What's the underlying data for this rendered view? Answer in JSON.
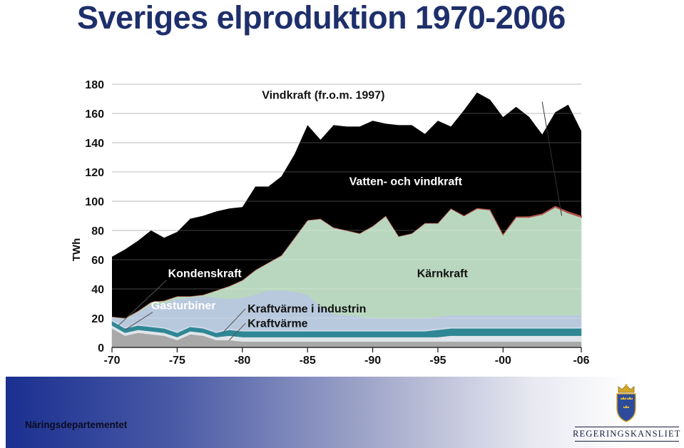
{
  "title": "Sveriges elproduktion 1970-2006",
  "footer": {
    "department": "Näringsdepartementet",
    "logo_text": "REGERINGSKANSLIET",
    "logo_icon": "crown-shield-three-crowns-icon"
  },
  "colors": {
    "title": "#1e2f6b",
    "vatten_och_vindkraft": "#5b7db0",
    "karnkraft": "#b9d7be",
    "vindkraft": "#b5524a",
    "kondenskraft": "#b8c8dd",
    "gasturbiner": "#ccd9e8",
    "kraftvarme_i_industrin": "#2f8794",
    "kraftvarme": "#dfe5ea",
    "other": "#a8a8a8"
  },
  "chart_data": {
    "type": "area",
    "stacked": true,
    "title": "",
    "xlabel": "",
    "ylabel": "TWh",
    "ylim": [
      0,
      180
    ],
    "xlim": [
      1970,
      2006
    ],
    "yticks": [
      "0",
      "20",
      "40",
      "60",
      "80",
      "100",
      "120",
      "140",
      "160",
      "180"
    ],
    "xticks": [
      {
        "x": 1970,
        "label": "-70"
      },
      {
        "x": 1975,
        "label": "-75"
      },
      {
        "x": 1980,
        "label": "-80"
      },
      {
        "x": 1985,
        "label": "-85"
      },
      {
        "x": 1990,
        "label": "-90"
      },
      {
        "x": 1995,
        "label": "-95"
      },
      {
        "x": 2000,
        "label": "-00"
      },
      {
        "x": 2006,
        "label": "-06"
      }
    ],
    "grid": true,
    "annotations": [
      {
        "text": "Vindkraft (fr.o.m. 1997)",
        "x": 1981.5,
        "y": 170,
        "target": [
          2004.5,
          90
        ]
      },
      {
        "text": "Vatten- och vindkraft",
        "x": 1988.2,
        "y": 111
      },
      {
        "text": "Kärnkraft",
        "x": 1993.4,
        "y": 48
      },
      {
        "text": "Kondenskraft",
        "x": 1974.3,
        "y": 48,
        "target": [
          1970.5,
          15
        ]
      },
      {
        "text": "Gasturbiner",
        "x": 1973.0,
        "y": 26,
        "target": [
          1971,
          12
        ]
      },
      {
        "text": "Kraftvärme i industrin",
        "x": 1980.4,
        "y": 24,
        "target": [
          1978.5,
          10
        ]
      },
      {
        "text": "Kraftvärme",
        "x": 1980.4,
        "y": 14,
        "target": [
          1979,
          5
        ]
      }
    ],
    "x": [
      1970,
      1971,
      1972,
      1973,
      1974,
      1975,
      1976,
      1977,
      1978,
      1979,
      1980,
      1981,
      1982,
      1983,
      1984,
      1985,
      1986,
      1987,
      1988,
      1989,
      1990,
      1991,
      1992,
      1993,
      1994,
      1995,
      1996,
      1997,
      1998,
      1999,
      2000,
      2001,
      2002,
      2003,
      2004,
      2005,
      2006
    ],
    "series": [
      {
        "key": "other",
        "values": [
          13,
          8,
          10,
          9,
          8,
          5,
          9,
          8,
          5,
          5,
          4,
          4,
          4,
          4,
          4,
          4,
          4,
          4,
          4,
          4,
          4,
          4,
          4,
          4,
          4,
          4,
          4,
          4,
          4,
          4,
          4,
          4,
          4,
          4,
          4,
          4,
          4
        ]
      },
      {
        "key": "kraftvarme",
        "values": [
          2,
          2,
          2,
          2,
          2,
          2,
          2,
          2,
          2,
          3,
          3,
          3,
          3,
          3,
          3,
          3,
          3,
          3,
          3,
          3,
          3,
          3,
          3,
          3,
          3,
          3,
          4,
          4,
          4,
          4,
          4,
          4,
          4,
          4,
          4,
          4,
          4
        ]
      },
      {
        "key": "kraftvarme_i_industrin",
        "values": [
          3,
          3,
          3,
          3,
          3,
          3,
          3,
          3,
          3,
          4,
          4,
          4,
          4,
          4,
          4,
          4,
          4,
          4,
          4,
          4,
          4,
          4,
          4,
          4,
          4,
          5,
          5,
          5,
          5,
          5,
          5,
          5,
          5,
          5,
          5,
          5,
          5
        ]
      },
      {
        "key": "gasturbiner",
        "values": [
          1,
          1,
          1,
          1,
          1,
          1,
          1,
          1,
          1,
          1,
          1,
          1,
          1,
          1,
          1,
          1,
          1,
          1,
          1,
          1,
          1,
          1,
          1,
          1,
          1,
          1,
          1,
          1,
          1,
          1,
          1,
          1,
          1,
          1,
          1,
          1,
          1
        ]
      },
      {
        "key": "kondenskraft",
        "values": [
          2,
          5,
          8,
          14,
          16,
          22,
          19,
          21,
          23,
          20,
          22,
          24,
          27,
          27,
          26,
          24,
          16,
          11,
          10,
          9,
          8,
          8,
          8,
          8,
          8,
          8,
          8,
          8,
          8,
          8,
          8,
          8,
          8,
          8,
          8,
          8,
          8
        ]
      },
      {
        "key": "karnkraft",
        "values": [
          0,
          1,
          1,
          2,
          2,
          2,
          1,
          1,
          5,
          9,
          12,
          17,
          19,
          24,
          37,
          51,
          60,
          59,
          58,
          57,
          63,
          70,
          56,
          58,
          65,
          64,
          73,
          68,
          73,
          72,
          55,
          67,
          67,
          69,
          74,
          70,
          67
        ]
      },
      {
        "key": "vindkraft",
        "values": [
          0,
          0,
          0,
          0,
          0,
          0,
          0,
          0,
          0,
          0,
          0,
          0,
          0,
          0,
          0,
          0,
          0,
          0,
          0,
          0,
          0,
          0,
          0,
          0,
          0,
          0,
          0,
          0.2,
          0.3,
          0.4,
          0.5,
          0.5,
          0.6,
          0.6,
          0.8,
          1,
          1
        ]
      },
      {
        "key": "vatten",
        "values": [
          41,
          47,
          48,
          49,
          43,
          44,
          53,
          54,
          54,
          53,
          50,
          57,
          52,
          54,
          57,
          65,
          54,
          70,
          71,
          73,
          72,
          63,
          76,
          74,
          61,
          70,
          56,
          72,
          79,
          75,
          80,
          75,
          68,
          54,
          64,
          73,
          58
        ]
      }
    ],
    "legend": "none"
  }
}
